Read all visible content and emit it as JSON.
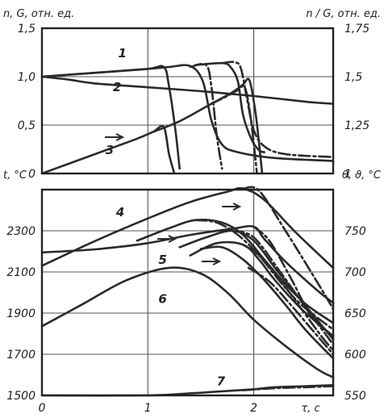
{
  "chart_data": [
    {
      "type": "line",
      "panel": "top",
      "ylabel": "n, G, отн. ед.",
      "y2label": "n / G, отн. ед.",
      "xlim": [
        0,
        2.75
      ],
      "ylim": [
        0,
        1.5
      ],
      "y2lim": [
        1,
        1.75
      ],
      "x_ticks": [
        "0",
        "1",
        "2"
      ],
      "y_ticks": [
        "0",
        "0,5",
        "1,0",
        "1,5"
      ],
      "y2_ticks": [
        "1",
        "1,25",
        "1,5",
        "1,75"
      ],
      "grid": true,
      "curve_labels": [
        {
          "text": "1",
          "x": 0.72,
          "y": 1.2
        },
        {
          "text": "2",
          "x": 0.67,
          "y": 0.85
        },
        {
          "text": "3",
          "x": 0.6,
          "y": 0.2
        }
      ],
      "series": [
        {
          "label": "1",
          "axis": "left",
          "style": "solid",
          "x": [
            0,
            0.5,
            1.0,
            1.15,
            1.2,
            1.26,
            1.3
          ],
          "y": [
            1.0,
            1.04,
            1.08,
            1.1,
            0.9,
            0.45,
            0.05
          ]
        },
        {
          "label": "1",
          "axis": "left",
          "style": "solid",
          "x": [
            0,
            1.0,
            1.2,
            1.4,
            1.52,
            1.6,
            1.7,
            1.85,
            2.2,
            2.75
          ],
          "y": [
            1.0,
            1.08,
            1.1,
            1.11,
            0.95,
            0.55,
            0.3,
            0.22,
            0.16,
            0.13
          ]
        },
        {
          "label": "1",
          "axis": "left",
          "style": "dash",
          "x": [
            1.4,
            1.55,
            1.6,
            1.65,
            1.7
          ],
          "y": [
            1.1,
            1.12,
            0.9,
            0.4,
            0.05
          ]
        },
        {
          "label": "1",
          "axis": "left",
          "style": "solid",
          "x": [
            1.45,
            1.7,
            1.78,
            1.85,
            1.9,
            1.98,
            2.05,
            2.1
          ],
          "y": [
            1.12,
            1.14,
            1.1,
            0.95,
            0.6,
            0.35,
            0.24,
            0.22
          ]
        },
        {
          "label": "1",
          "axis": "left",
          "style": "dash",
          "x": [
            1.7,
            1.82,
            1.88,
            1.94,
            2.0,
            2.1,
            2.3,
            2.75
          ],
          "y": [
            1.14,
            1.15,
            1.08,
            0.75,
            0.45,
            0.28,
            0.2,
            0.17
          ]
        },
        {
          "label": "2",
          "axis": "left",
          "style": "solid",
          "x": [
            0,
            0.25,
            0.5,
            1.0,
            1.5,
            2.0,
            2.5,
            2.75
          ],
          "y": [
            1.0,
            0.97,
            0.93,
            0.89,
            0.85,
            0.8,
            0.74,
            0.72
          ]
        },
        {
          "label": "3",
          "axis": "right",
          "style": "solid",
          "x": [
            0,
            0.3,
            0.6,
            0.9,
            1.05,
            1.15,
            1.2,
            1.25
          ],
          "y": [
            1.0,
            1.06,
            1.12,
            1.18,
            1.215,
            1.24,
            1.1,
            1.0
          ]
        },
        {
          "label": "3",
          "axis": "right",
          "style": "solid",
          "x": [
            1.05,
            1.3,
            1.6,
            1.8,
            1.9,
            1.96,
            2.02,
            2.08
          ],
          "y": [
            1.215,
            1.27,
            1.36,
            1.42,
            1.46,
            1.48,
            1.3,
            1.0
          ]
        },
        {
          "label": "3",
          "axis": "right",
          "style": "dash",
          "x": [
            1.6,
            1.75,
            1.85,
            1.92,
            1.98,
            2.03
          ],
          "y": [
            1.36,
            1.4,
            1.43,
            1.44,
            1.25,
            1.0
          ]
        }
      ]
    },
    {
      "type": "line",
      "panel": "bottom",
      "ylabel": "t, °C",
      "y2label": "θ, ϑ, °C",
      "xlabel": "τ, с",
      "xlim": [
        0,
        2.75
      ],
      "ylim": [
        1500,
        2500
      ],
      "y2lim": [
        550,
        800
      ],
      "x_ticks": [
        "0",
        "1",
        "2"
      ],
      "y_ticks": [
        "1500",
        "1700",
        "1900",
        "2100",
        "2300"
      ],
      "y2_ticks": [
        "550",
        "600",
        "650",
        "700",
        "750"
      ],
      "grid": true,
      "curve_labels": [
        {
          "text": "4",
          "x": 0.7,
          "y": 2370
        },
        {
          "text": "5",
          "x": 1.1,
          "y": 2140
        },
        {
          "text": "6",
          "x": 1.1,
          "y": 1950
        },
        {
          "text": "7",
          "x": 1.65,
          "y": 1550
        }
      ],
      "series": [
        {
          "label": "4",
          "axis": "left",
          "style": "solid",
          "x": [
            0,
            0.5,
            1.0,
            1.4,
            1.75,
            1.9,
            2.1,
            2.4,
            2.75
          ],
          "y": [
            2130,
            2250,
            2360,
            2440,
            2490,
            2505,
            2450,
            2290,
            2120
          ]
        },
        {
          "label": "4",
          "axis": "left",
          "style": "dash",
          "x": [
            1.9,
            2.05,
            2.3,
            2.6,
            2.75
          ],
          "y": [
            2505,
            2495,
            2300,
            2050,
            1920
          ]
        },
        {
          "label": "5",
          "axis": "left",
          "style": "solid",
          "x": [
            0,
            0.5,
            1.0,
            1.4,
            1.8,
            2.0,
            2.1,
            2.3,
            2.6,
            2.75
          ],
          "y": [
            2195,
            2210,
            2240,
            2280,
            2310,
            2320,
            2260,
            2150,
            2010,
            1950
          ]
        },
        {
          "label": "5",
          "axis": "left",
          "style": "dash",
          "x": [
            2.0,
            2.15,
            2.35,
            2.55,
            2.75
          ],
          "y": [
            2320,
            2250,
            2070,
            1880,
            1790
          ]
        },
        {
          "label": "6",
          "axis": "right",
          "style": "solid",
          "x": [
            0,
            0.4,
            0.8,
            1.2,
            1.5,
            1.75,
            2.0,
            2.3,
            2.6,
            2.75
          ],
          "y": [
            634,
            662,
            690,
            705,
            698,
            675,
            642,
            610,
            582,
            572
          ]
        },
        {
          "label": "—",
          "axis": "right",
          "style": "solid",
          "x": [
            0.9,
            1.2,
            1.45,
            1.7,
            1.9,
            2.1,
            2.3,
            2.5,
            2.75
          ],
          "y": [
            738,
            753,
            763,
            760,
            745,
            715,
            685,
            660,
            638
          ]
        },
        {
          "label": "—",
          "axis": "right",
          "style": "dash",
          "x": [
            1.45,
            1.65,
            1.85,
            2.05,
            2.25,
            2.45,
            2.75
          ],
          "y": [
            763,
            760,
            745,
            720,
            688,
            660,
            630
          ]
        },
        {
          "label": "—",
          "axis": "right",
          "style": "solid",
          "x": [
            1.4,
            1.65,
            1.9,
            2.05,
            2.2,
            2.45,
            2.75
          ],
          "y": [
            720,
            735,
            733,
            715,
            690,
            655,
            622
          ]
        },
        {
          "label": "—",
          "axis": "right",
          "style": "dash",
          "x": [
            1.9,
            2.05,
            2.25,
            2.45,
            2.65,
            2.75
          ],
          "y": [
            733,
            720,
            690,
            655,
            620,
            605
          ]
        },
        {
          "label": "—",
          "axis": "right",
          "style": "solid",
          "x": [
            1.3,
            1.55,
            1.8,
            2.0,
            2.2,
            2.45,
            2.75
          ],
          "y": [
            730,
            742,
            750,
            738,
            705,
            665,
            618
          ]
        },
        {
          "label": "—",
          "axis": "right",
          "style": "dash",
          "x": [
            1.8,
            2.0,
            2.25,
            2.5,
            2.75
          ],
          "y": [
            750,
            742,
            700,
            655,
            612
          ]
        },
        {
          "label": "—",
          "axis": "right",
          "style": "solid",
          "x": [
            1.5,
            1.7,
            1.9,
            2.1,
            2.3,
            2.5,
            2.75
          ],
          "y": [
            728,
            730,
            715,
            690,
            660,
            628,
            595
          ]
        },
        {
          "label": "—",
          "axis": "right",
          "style": "dash",
          "x": [
            1.95,
            2.15,
            2.35,
            2.55,
            2.75
          ],
          "y": [
            705,
            688,
            660,
            630,
            600
          ]
        },
        {
          "label": "7",
          "axis": "left",
          "style": "solid",
          "x": [
            0,
            1.0,
            1.4,
            1.7,
            2.0,
            2.2,
            2.5,
            2.75
          ],
          "y": [
            1500,
            1500,
            1510,
            1520,
            1530,
            1540,
            1545,
            1550
          ]
        },
        {
          "label": "7",
          "axis": "left",
          "style": "dash",
          "x": [
            1.9,
            2.2,
            2.5,
            2.75
          ],
          "y": [
            1525,
            1535,
            1540,
            1545
          ]
        }
      ]
    }
  ]
}
